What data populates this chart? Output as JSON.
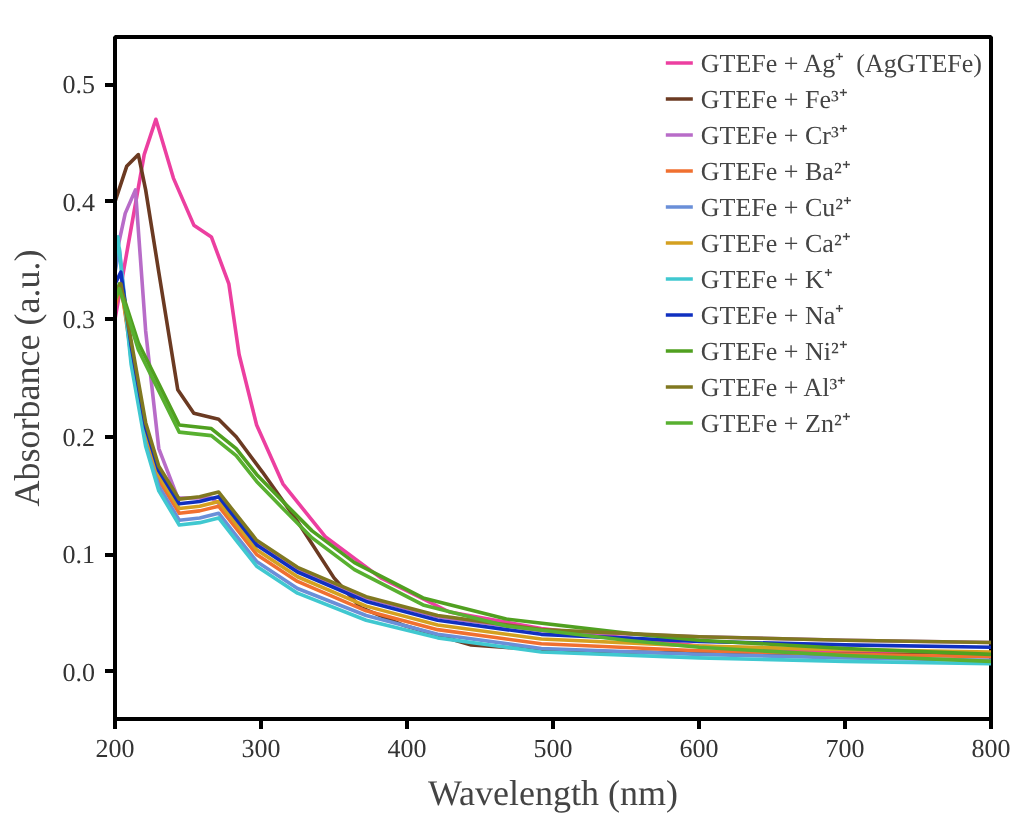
{
  "chart_data": {
    "type": "line",
    "xlabel": "Wavelength (nm)",
    "ylabel": "Absorbance (a.u.)",
    "xlim": [
      200,
      800
    ],
    "ylim": [
      -0.04,
      0.54
    ],
    "xticks": [
      200,
      300,
      400,
      500,
      600,
      700,
      800
    ],
    "yticks": [
      {
        "value": 0,
        "label": "0.0"
      },
      0.1,
      0.2,
      0.3,
      0.4,
      0.5
    ],
    "grid": false,
    "legend": "top right",
    "line_style": "solid",
    "series": [
      {
        "name": "GTEFe + Ag⁺  (AgGTEFe)",
        "color": "#ec3fa0",
        "x": [
          200,
          210,
          220,
          228,
          240,
          254,
          266,
          278,
          285,
          297,
          315,
          344,
          382,
          429,
          492,
          600,
          700,
          800
        ],
        "values": [
          0.3,
          0.37,
          0.44,
          0.47,
          0.42,
          0.38,
          0.37,
          0.33,
          0.27,
          0.21,
          0.16,
          0.115,
          0.08,
          0.051,
          0.037,
          0.022,
          0.017,
          0.013
        ]
      },
      {
        "name": "GTEFe + Fe³⁺",
        "color": "#6b3a22",
        "x": [
          200,
          208,
          216,
          221,
          230,
          243,
          254,
          271,
          283,
          301,
          325,
          350,
          368,
          397,
          444,
          500,
          600,
          700,
          800
        ],
        "values": [
          0.4,
          0.43,
          0.44,
          0.41,
          0.34,
          0.24,
          0.22,
          0.215,
          0.2,
          0.17,
          0.128,
          0.08,
          0.055,
          0.04,
          0.023,
          0.018,
          0.016,
          0.015,
          0.014
        ]
      },
      {
        "name": "GTEFe + Cr³⁺",
        "color": "#b86cc8",
        "x": [
          200,
          207,
          214,
          221,
          230,
          243,
          258,
          266,
          283,
          297,
          325,
          372,
          421,
          492,
          600,
          700,
          800
        ],
        "values": [
          0.35,
          0.39,
          0.41,
          0.29,
          0.19,
          0.148,
          0.148,
          0.148,
          0.132,
          0.11,
          0.087,
          0.063,
          0.047,
          0.035,
          0.03,
          0.027,
          0.025
        ]
      },
      {
        "name": "GTEFe + Ba²⁺",
        "color": "#f07030",
        "x": [
          200,
          204,
          211,
          221,
          230,
          244,
          258,
          271,
          283,
          297,
          325,
          372,
          421,
          492,
          600,
          700,
          800
        ],
        "values": [
          0.31,
          0.33,
          0.27,
          0.2,
          0.163,
          0.135,
          0.137,
          0.141,
          0.122,
          0.1,
          0.077,
          0.052,
          0.036,
          0.024,
          0.018,
          0.015,
          0.013
        ]
      },
      {
        "name": "GTEFe + Cu²⁺",
        "color": "#6a8fd8",
        "x": [
          200,
          203,
          211,
          221,
          230,
          244,
          258,
          271,
          283,
          297,
          325,
          372,
          421,
          492,
          600,
          700,
          800
        ],
        "values": [
          0.34,
          0.36,
          0.266,
          0.196,
          0.158,
          0.129,
          0.131,
          0.135,
          0.116,
          0.094,
          0.071,
          0.048,
          0.032,
          0.02,
          0.015,
          0.012,
          0.01
        ]
      },
      {
        "name": "GTEFe + Ca²⁺",
        "color": "#d4a020",
        "x": [
          200,
          204,
          211,
          221,
          230,
          244,
          258,
          271,
          283,
          297,
          325,
          372,
          421,
          492,
          600,
          700,
          800
        ],
        "values": [
          0.32,
          0.33,
          0.274,
          0.204,
          0.167,
          0.139,
          0.141,
          0.145,
          0.126,
          0.104,
          0.081,
          0.056,
          0.04,
          0.028,
          0.022,
          0.019,
          0.017
        ]
      },
      {
        "name": "GTEFe + K⁺",
        "color": "#40c8d0",
        "x": [
          200,
          202,
          211,
          221,
          230,
          244,
          258,
          271,
          283,
          297,
          325,
          372,
          421,
          492,
          600,
          700,
          800
        ],
        "values": [
          0.35,
          0.37,
          0.262,
          0.192,
          0.154,
          0.125,
          0.127,
          0.131,
          0.112,
          0.09,
          0.067,
          0.044,
          0.029,
          0.017,
          0.012,
          0.009,
          0.007
        ]
      },
      {
        "name": "GTEFe + Na⁺",
        "color": "#1030c0",
        "x": [
          200,
          204,
          211,
          221,
          230,
          244,
          258,
          271,
          283,
          297,
          325,
          372,
          421,
          492,
          600,
          700,
          800
        ],
        "values": [
          0.33,
          0.34,
          0.278,
          0.208,
          0.171,
          0.143,
          0.145,
          0.149,
          0.13,
          0.108,
          0.085,
          0.06,
          0.044,
          0.032,
          0.026,
          0.023,
          0.021
        ]
      },
      {
        "name": "GTEFe + Ni²⁺",
        "color": "#50a020",
        "x": [
          200,
          203,
          216,
          230,
          244,
          266,
          283,
          297,
          315,
          335,
          364,
          411,
          468,
          550,
          600,
          700,
          800
        ],
        "values": [
          0.32,
          0.33,
          0.28,
          0.245,
          0.21,
          0.207,
          0.19,
          0.168,
          0.145,
          0.12,
          0.093,
          0.063,
          0.045,
          0.033,
          0.027,
          0.02,
          0.015
        ]
      },
      {
        "name": "GTEFe + Al³⁺",
        "color": "#807820",
        "x": [
          200,
          204,
          211,
          221,
          230,
          244,
          258,
          271,
          283,
          297,
          325,
          372,
          421,
          492,
          600,
          700,
          800
        ],
        "values": [
          0.32,
          0.33,
          0.282,
          0.212,
          0.175,
          0.147,
          0.149,
          0.153,
          0.134,
          0.112,
          0.089,
          0.064,
          0.048,
          0.036,
          0.03,
          0.027,
          0.025
        ]
      },
      {
        "name": "GTEFe + Zn²⁺",
        "color": "#58b030",
        "x": [
          200,
          203,
          216,
          230,
          244,
          266,
          283,
          297,
          315,
          335,
          364,
          411,
          468,
          550,
          600,
          700,
          800
        ],
        "values": [
          0.316,
          0.326,
          0.274,
          0.239,
          0.204,
          0.201,
          0.184,
          0.162,
          0.139,
          0.114,
          0.087,
          0.057,
          0.039,
          0.027,
          0.021,
          0.014,
          0.009
        ]
      }
    ]
  }
}
